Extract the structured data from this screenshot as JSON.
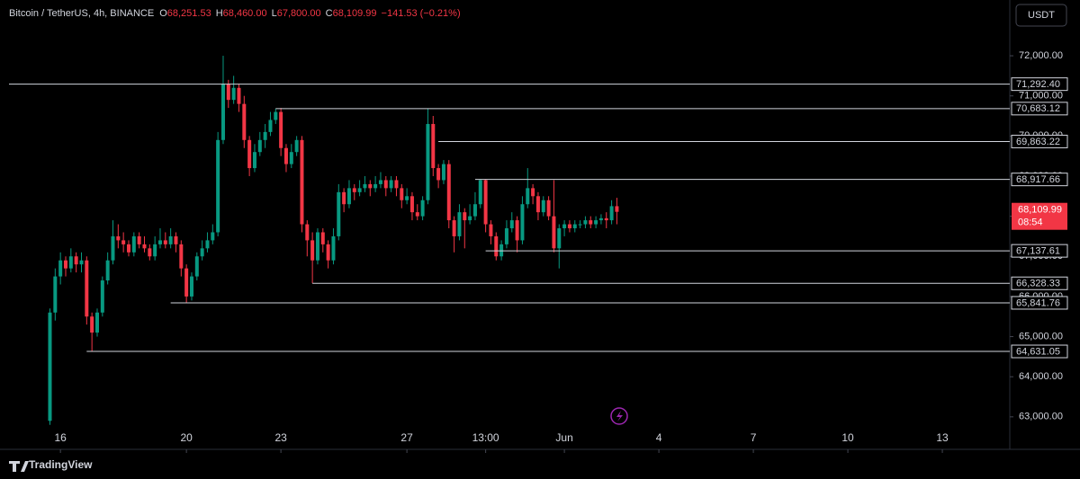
{
  "chart_data": {
    "type": "candlestick",
    "header": {
      "symbol": "Bitcoin / TetherUS, 4h, BINANCE",
      "o_label": "O",
      "o": "68,251.53",
      "h_label": "H",
      "h": "68,460.00",
      "l_label": "L",
      "l": "67,800.00",
      "c_label": "C",
      "c": "68,109.99",
      "change": "−141.53 (−0.21%)"
    },
    "currency": "USDT",
    "brand": "TradingView",
    "up_color": "#089981",
    "down_color": "#f23645",
    "xlim": [
      -7.8,
      182.85
    ],
    "xticks": [
      {
        "value": 2,
        "label": "16"
      },
      {
        "value": 26,
        "label": "20"
      },
      {
        "value": 44,
        "label": "23"
      },
      {
        "value": 68,
        "label": "27"
      },
      {
        "value": 83,
        "label": "13:00"
      },
      {
        "value": 98,
        "label": "Jun"
      },
      {
        "value": 116,
        "label": "4"
      },
      {
        "value": 134,
        "label": "7"
      },
      {
        "value": 152,
        "label": "10"
      },
      {
        "value": 170,
        "label": "13"
      }
    ],
    "ylim": [
      62190,
      73390
    ],
    "yticks": [
      {
        "value": 72000,
        "label": "72,000.00"
      },
      {
        "value": 71000,
        "label": "71,000.00"
      },
      {
        "value": 70000,
        "label": "70,000.00"
      },
      {
        "value": 69000,
        "label": "69,000.00"
      },
      {
        "value": 68000,
        "label": "68,000.00"
      },
      {
        "value": 67000,
        "label": "67,000.00"
      },
      {
        "value": 66000,
        "label": "66,000.00"
      },
      {
        "value": 65000,
        "label": "65,000.00"
      },
      {
        "value": 64000,
        "label": "64,000.00"
      },
      {
        "value": 63000,
        "label": "63,000.00"
      }
    ],
    "x": [
      0,
      1,
      2,
      3,
      4,
      5,
      6,
      7,
      8,
      9,
      10,
      11,
      12,
      13,
      14,
      15,
      16,
      17,
      18,
      19,
      20,
      21,
      22,
      23,
      24,
      25,
      26,
      27,
      28,
      29,
      30,
      31,
      32,
      33,
      34,
      35,
      36,
      37,
      38,
      39,
      40,
      41,
      42,
      43,
      44,
      45,
      46,
      47,
      48,
      49,
      50,
      51,
      52,
      53,
      54,
      55,
      56,
      57,
      58,
      59,
      60,
      61,
      62,
      63,
      64,
      65,
      66,
      67,
      68,
      69,
      70,
      71,
      72,
      73,
      74,
      75,
      76,
      77,
      78,
      79,
      80,
      81,
      82,
      83,
      84,
      85,
      86,
      87,
      88,
      89,
      90,
      91,
      92,
      93,
      94,
      95,
      96,
      97,
      98,
      99,
      100,
      101,
      102,
      103,
      104,
      105,
      106,
      107,
      108
    ],
    "open": [
      62900,
      65600,
      66500,
      66900,
      66700,
      67000,
      66800,
      66900,
      65500,
      65100,
      65600,
      66400,
      66900,
      67500,
      67400,
      67300,
      67100,
      67500,
      67300,
      67200,
      67000,
      67300,
      67400,
      67300,
      67500,
      67300,
      66700,
      66000,
      66500,
      67000,
      67200,
      67400,
      67600,
      69900,
      71300,
      70900,
      71200,
      70800,
      69900,
      69200,
      69600,
      69900,
      70100,
      70400,
      70600,
      69700,
      69300,
      69600,
      69900,
      67800,
      67400,
      66900,
      67600,
      67300,
      66900,
      67500,
      68600,
      68300,
      68700,
      68600,
      68700,
      68800,
      68700,
      68800,
      68900,
      68700,
      68900,
      68700,
      68400,
      68500,
      68100,
      68000,
      68400,
      70300,
      69200,
      68900,
      69300,
      67900,
      67500,
      68100,
      67900,
      68000,
      68300,
      68900,
      67800,
      67500,
      67000,
      67300,
      67700,
      67900,
      67400,
      68300,
      68700,
      68500,
      68100,
      68400,
      68000,
      67200,
      67700,
      67800,
      67700,
      67800,
      67800,
      67900,
      67800,
      67900,
      67950,
      67900,
      68251
    ],
    "high": [
      65700,
      66700,
      67100,
      67000,
      67200,
      67100,
      67100,
      67000,
      65600,
      65700,
      66500,
      67100,
      67900,
      67800,
      67600,
      67400,
      67600,
      67600,
      67500,
      67300,
      67500,
      67700,
      67600,
      67700,
      67600,
      67400,
      66800,
      66600,
      67100,
      67400,
      67600,
      67800,
      70100,
      72000,
      71400,
      71500,
      71300,
      71000,
      70000,
      69800,
      70100,
      70300,
      70600,
      70683,
      70700,
      69800,
      69800,
      70000,
      70000,
      67900,
      67600,
      67700,
      67700,
      67400,
      67700,
      68800,
      68700,
      68900,
      68800,
      68900,
      69000,
      68900,
      69000,
      69100,
      69000,
      69000,
      69000,
      68800,
      68700,
      68600,
      68300,
      68500,
      70683,
      70500,
      69300,
      69400,
      69400,
      68000,
      68300,
      68200,
      68300,
      68600,
      68917,
      68917,
      67900,
      67600,
      67400,
      67900,
      68100,
      68000,
      68500,
      69200,
      68800,
      68600,
      68500,
      68500,
      68900,
      67800,
      67900,
      67900,
      67900,
      67900,
      68000,
      68000,
      68000,
      68050,
      68100,
      68400,
      68460
    ],
    "low": [
      62800,
      65400,
      66300,
      66500,
      66600,
      66600,
      66600,
      65300,
      64630,
      65000,
      65500,
      66300,
      66800,
      67200,
      67100,
      67000,
      67000,
      67200,
      67100,
      66900,
      66900,
      67200,
      67200,
      67200,
      67100,
      66500,
      65840,
      65900,
      66400,
      66900,
      67100,
      67300,
      67500,
      69800,
      70700,
      70800,
      70600,
      69700,
      69000,
      69100,
      69500,
      69700,
      70000,
      70300,
      69500,
      69100,
      69200,
      69500,
      67600,
      67000,
      66330,
      66800,
      67100,
      66700,
      66800,
      67400,
      68100,
      68200,
      68400,
      68500,
      68600,
      68500,
      68600,
      68700,
      68500,
      68600,
      68500,
      68200,
      68300,
      67900,
      67900,
      67900,
      68300,
      69000,
      68700,
      68800,
      67700,
      67100,
      67400,
      67200,
      67800,
      67900,
      68200,
      67600,
      67300,
      66900,
      66900,
      67200,
      67600,
      67100,
      67300,
      68200,
      68300,
      67900,
      68000,
      67900,
      67100,
      66700,
      67500,
      67600,
      67600,
      67700,
      67700,
      67700,
      67700,
      67800,
      67700,
      67800,
      67800
    ],
    "close": [
      65600,
      66500,
      66900,
      66700,
      67000,
      66800,
      66900,
      65500,
      65100,
      65600,
      66400,
      66900,
      67500,
      67400,
      67300,
      67100,
      67500,
      67300,
      67200,
      67000,
      67300,
      67400,
      67300,
      67500,
      67300,
      66700,
      66000,
      66500,
      67000,
      67200,
      67400,
      67600,
      69900,
      71300,
      70900,
      71200,
      70800,
      69900,
      69200,
      69600,
      69900,
      70100,
      70400,
      70600,
      69700,
      69300,
      69600,
      69900,
      67800,
      67400,
      66900,
      67600,
      67300,
      66900,
      67500,
      68600,
      68300,
      68700,
      68600,
      68700,
      68800,
      68700,
      68800,
      68900,
      68700,
      68900,
      68700,
      68400,
      68500,
      68100,
      68000,
      68400,
      70300,
      69200,
      68900,
      69300,
      67900,
      67500,
      68100,
      67900,
      68000,
      68300,
      68900,
      67800,
      67500,
      67000,
      67300,
      67700,
      67900,
      67400,
      68300,
      68700,
      68500,
      68100,
      68400,
      68000,
      67200,
      67700,
      67800,
      67700,
      67800,
      67800,
      67900,
      67800,
      67900,
      67950,
      67900,
      68251,
      68109.99
    ],
    "levels": [
      {
        "value": 71292.4,
        "label": "71,292.40",
        "start": -7.8
      },
      {
        "value": 70683.12,
        "label": "70,683.12",
        "start": 43
      },
      {
        "value": 69863.22,
        "label": "69,863.22",
        "start": 74
      },
      {
        "value": 68917.66,
        "label": "68,917.66",
        "start": 81
      },
      {
        "value": 67137.61,
        "label": "67,137.61",
        "start": 83
      },
      {
        "value": 66328.33,
        "label": "66,328.33",
        "start": 50
      },
      {
        "value": 65841.76,
        "label": "65,841.76",
        "start": 23
      },
      {
        "value": 64631.05,
        "label": "64,631.05",
        "start": 7
      }
    ],
    "last_price": {
      "value": 68109.99,
      "label": "68,109.99",
      "countdown": "08:54"
    }
  }
}
